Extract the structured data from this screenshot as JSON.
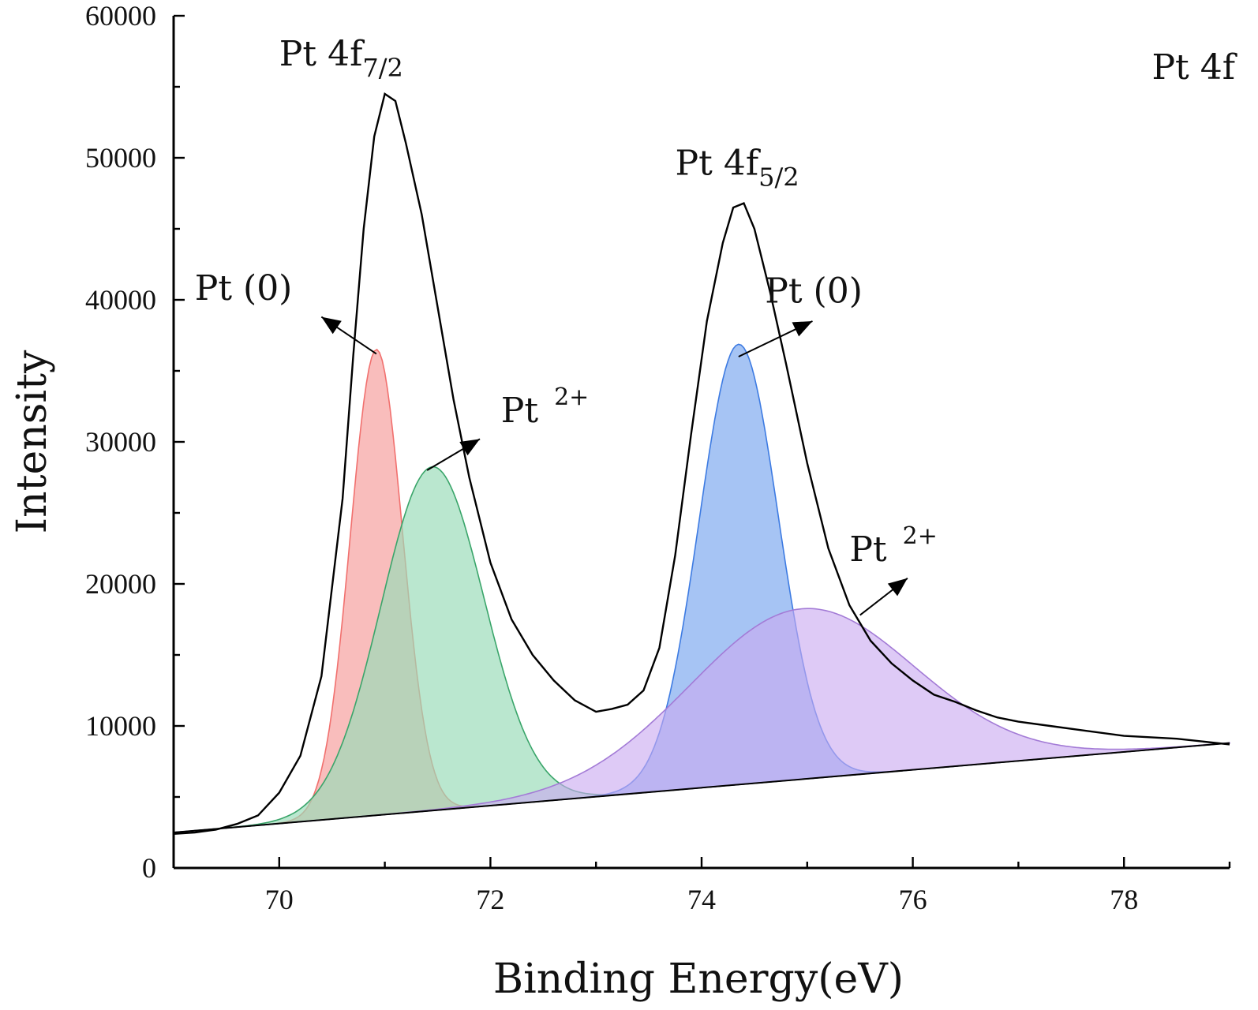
{
  "chart_data": {
    "type": "area",
    "title": "Pt 4f",
    "xlabel": "Binding Energy(eV)",
    "ylabel": "Intensity",
    "xlim": [
      69.0,
      79.0
    ],
    "ylim": [
      0,
      60000
    ],
    "x_ticks": [
      70,
      72,
      74,
      76,
      78
    ],
    "y_ticks": [
      0,
      10000,
      20000,
      30000,
      40000,
      50000,
      60000
    ],
    "grid": false,
    "legend": "none",
    "series": [
      {
        "kind": "envelope",
        "color": "#000000",
        "points": [
          [
            69.0,
            2400
          ],
          [
            69.2,
            2500
          ],
          [
            69.4,
            2700
          ],
          [
            69.6,
            3100
          ],
          [
            69.8,
            3700
          ],
          [
            70.0,
            5300
          ],
          [
            70.2,
            7900
          ],
          [
            70.4,
            13500
          ],
          [
            70.6,
            26000
          ],
          [
            70.7,
            36000
          ],
          [
            70.8,
            45000
          ],
          [
            70.9,
            51500
          ],
          [
            71.0,
            54500
          ],
          [
            71.1,
            54000
          ],
          [
            71.2,
            51000
          ],
          [
            71.35,
            46000
          ],
          [
            71.5,
            39500
          ],
          [
            71.65,
            33000
          ],
          [
            71.8,
            27500
          ],
          [
            72.0,
            21500
          ],
          [
            72.2,
            17500
          ],
          [
            72.4,
            15000
          ],
          [
            72.6,
            13200
          ],
          [
            72.8,
            11800
          ],
          [
            73.0,
            11000
          ],
          [
            73.15,
            11200
          ],
          [
            73.3,
            11500
          ],
          [
            73.45,
            12500
          ],
          [
            73.6,
            15500
          ],
          [
            73.75,
            22000
          ],
          [
            73.9,
            30500
          ],
          [
            74.05,
            38500
          ],
          [
            74.2,
            44000
          ],
          [
            74.3,
            46500
          ],
          [
            74.4,
            46800
          ],
          [
            74.5,
            45000
          ],
          [
            74.65,
            40500
          ],
          [
            74.8,
            35500
          ],
          [
            75.0,
            28500
          ],
          [
            75.2,
            22500
          ],
          [
            75.4,
            18500
          ],
          [
            75.6,
            16000
          ],
          [
            75.8,
            14400
          ],
          [
            76.0,
            13200
          ],
          [
            76.2,
            12200
          ],
          [
            76.4,
            11700
          ],
          [
            76.6,
            11100
          ],
          [
            76.8,
            10600
          ],
          [
            77.0,
            10300
          ],
          [
            77.3,
            10000
          ],
          [
            77.6,
            9700
          ],
          [
            78.0,
            9300
          ],
          [
            78.5,
            9100
          ],
          [
            79.0,
            8700
          ]
        ]
      },
      {
        "kind": "baseline",
        "color": "#000000",
        "points": [
          [
            69.0,
            2500
          ],
          [
            79.0,
            8800
          ]
        ]
      },
      {
        "kind": "component",
        "color": "#f1706e",
        "fill": "#f7aaa9",
        "opacity": 0.78,
        "center": 70.92,
        "height": 32800,
        "fwhm": 0.58
      },
      {
        "kind": "component",
        "color": "#3aa56a",
        "fill": "#99dbb8",
        "opacity": 0.68,
        "center": 71.45,
        "height": 24200,
        "fwhm": 1.15
      },
      {
        "kind": "component",
        "color": "#3d7be2",
        "fill": "#6fa0ee",
        "opacity": 0.62,
        "center": 74.35,
        "height": 31000,
        "fwhm": 0.88
      },
      {
        "kind": "component",
        "color": "#a37bd6",
        "fill": "#c9aaf0",
        "opacity": 0.62,
        "center": 74.95,
        "height": 12000,
        "fwhm": 2.5
      }
    ],
    "annotations": [
      {
        "name": "pt-4f72",
        "main": "Pt 4f",
        "sub": "7/2",
        "x": 70.0,
        "y": 56500
      },
      {
        "name": "pt-4f52",
        "main": "Pt 4f",
        "sub": "5/2",
        "x": 73.75,
        "y": 48800
      },
      {
        "name": "pt0-left",
        "main": "Pt (0)",
        "x": 69.2,
        "y": 40000
      },
      {
        "name": "pt2-left",
        "main": "Pt",
        "sup": "2+",
        "x": 72.1,
        "y": 31400
      },
      {
        "name": "pt0-right",
        "main": "Pt (0)",
        "x": 74.6,
        "y": 39800
      },
      {
        "name": "pt2-right",
        "main": "Pt",
        "sup": "2+",
        "x": 75.4,
        "y": 21600
      }
    ],
    "arrows": [
      {
        "from": [
          70.92,
          36200
        ],
        "to": [
          70.4,
          38800
        ]
      },
      {
        "from": [
          71.4,
          28000
        ],
        "to": [
          71.9,
          30200
        ]
      },
      {
        "from": [
          74.35,
          36000
        ],
        "to": [
          75.05,
          38500
        ]
      },
      {
        "from": [
          75.5,
          17800
        ],
        "to": [
          75.95,
          20400
        ]
      }
    ]
  }
}
